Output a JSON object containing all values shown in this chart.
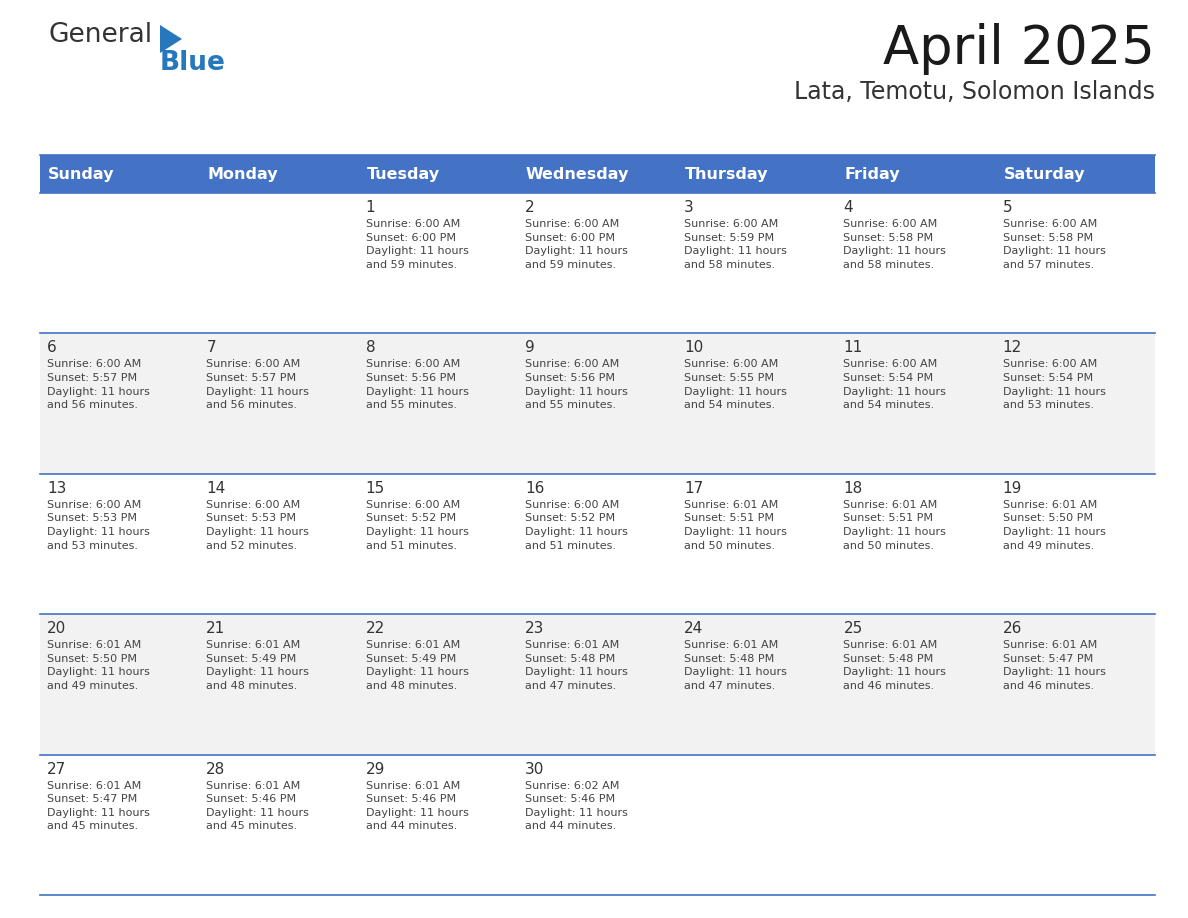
{
  "title": "April 2025",
  "subtitle": "Lata, Temotu, Solomon Islands",
  "header_bg": "#4472C4",
  "header_text_color": "#FFFFFF",
  "days_of_week": [
    "Sunday",
    "Monday",
    "Tuesday",
    "Wednesday",
    "Thursday",
    "Friday",
    "Saturday"
  ],
  "row_bg_even": "#FFFFFF",
  "row_bg_odd": "#F2F2F2",
  "cell_border_color": "#4472C4",
  "day_number_color": "#333333",
  "cell_text_color": "#444444",
  "calendar": [
    [
      {
        "day": "",
        "sunrise": "",
        "sunset": "",
        "daylight": ""
      },
      {
        "day": "",
        "sunrise": "",
        "sunset": "",
        "daylight": ""
      },
      {
        "day": "1",
        "sunrise": "Sunrise: 6:00 AM",
        "sunset": "Sunset: 6:00 PM",
        "daylight": "Daylight: 11 hours\nand 59 minutes."
      },
      {
        "day": "2",
        "sunrise": "Sunrise: 6:00 AM",
        "sunset": "Sunset: 6:00 PM",
        "daylight": "Daylight: 11 hours\nand 59 minutes."
      },
      {
        "day": "3",
        "sunrise": "Sunrise: 6:00 AM",
        "sunset": "Sunset: 5:59 PM",
        "daylight": "Daylight: 11 hours\nand 58 minutes."
      },
      {
        "day": "4",
        "sunrise": "Sunrise: 6:00 AM",
        "sunset": "Sunset: 5:58 PM",
        "daylight": "Daylight: 11 hours\nand 58 minutes."
      },
      {
        "day": "5",
        "sunrise": "Sunrise: 6:00 AM",
        "sunset": "Sunset: 5:58 PM",
        "daylight": "Daylight: 11 hours\nand 57 minutes."
      }
    ],
    [
      {
        "day": "6",
        "sunrise": "Sunrise: 6:00 AM",
        "sunset": "Sunset: 5:57 PM",
        "daylight": "Daylight: 11 hours\nand 56 minutes."
      },
      {
        "day": "7",
        "sunrise": "Sunrise: 6:00 AM",
        "sunset": "Sunset: 5:57 PM",
        "daylight": "Daylight: 11 hours\nand 56 minutes."
      },
      {
        "day": "8",
        "sunrise": "Sunrise: 6:00 AM",
        "sunset": "Sunset: 5:56 PM",
        "daylight": "Daylight: 11 hours\nand 55 minutes."
      },
      {
        "day": "9",
        "sunrise": "Sunrise: 6:00 AM",
        "sunset": "Sunset: 5:56 PM",
        "daylight": "Daylight: 11 hours\nand 55 minutes."
      },
      {
        "day": "10",
        "sunrise": "Sunrise: 6:00 AM",
        "sunset": "Sunset: 5:55 PM",
        "daylight": "Daylight: 11 hours\nand 54 minutes."
      },
      {
        "day": "11",
        "sunrise": "Sunrise: 6:00 AM",
        "sunset": "Sunset: 5:54 PM",
        "daylight": "Daylight: 11 hours\nand 54 minutes."
      },
      {
        "day": "12",
        "sunrise": "Sunrise: 6:00 AM",
        "sunset": "Sunset: 5:54 PM",
        "daylight": "Daylight: 11 hours\nand 53 minutes."
      }
    ],
    [
      {
        "day": "13",
        "sunrise": "Sunrise: 6:00 AM",
        "sunset": "Sunset: 5:53 PM",
        "daylight": "Daylight: 11 hours\nand 53 minutes."
      },
      {
        "day": "14",
        "sunrise": "Sunrise: 6:00 AM",
        "sunset": "Sunset: 5:53 PM",
        "daylight": "Daylight: 11 hours\nand 52 minutes."
      },
      {
        "day": "15",
        "sunrise": "Sunrise: 6:00 AM",
        "sunset": "Sunset: 5:52 PM",
        "daylight": "Daylight: 11 hours\nand 51 minutes."
      },
      {
        "day": "16",
        "sunrise": "Sunrise: 6:00 AM",
        "sunset": "Sunset: 5:52 PM",
        "daylight": "Daylight: 11 hours\nand 51 minutes."
      },
      {
        "day": "17",
        "sunrise": "Sunrise: 6:01 AM",
        "sunset": "Sunset: 5:51 PM",
        "daylight": "Daylight: 11 hours\nand 50 minutes."
      },
      {
        "day": "18",
        "sunrise": "Sunrise: 6:01 AM",
        "sunset": "Sunset: 5:51 PM",
        "daylight": "Daylight: 11 hours\nand 50 minutes."
      },
      {
        "day": "19",
        "sunrise": "Sunrise: 6:01 AM",
        "sunset": "Sunset: 5:50 PM",
        "daylight": "Daylight: 11 hours\nand 49 minutes."
      }
    ],
    [
      {
        "day": "20",
        "sunrise": "Sunrise: 6:01 AM",
        "sunset": "Sunset: 5:50 PM",
        "daylight": "Daylight: 11 hours\nand 49 minutes."
      },
      {
        "day": "21",
        "sunrise": "Sunrise: 6:01 AM",
        "sunset": "Sunset: 5:49 PM",
        "daylight": "Daylight: 11 hours\nand 48 minutes."
      },
      {
        "day": "22",
        "sunrise": "Sunrise: 6:01 AM",
        "sunset": "Sunset: 5:49 PM",
        "daylight": "Daylight: 11 hours\nand 48 minutes."
      },
      {
        "day": "23",
        "sunrise": "Sunrise: 6:01 AM",
        "sunset": "Sunset: 5:48 PM",
        "daylight": "Daylight: 11 hours\nand 47 minutes."
      },
      {
        "day": "24",
        "sunrise": "Sunrise: 6:01 AM",
        "sunset": "Sunset: 5:48 PM",
        "daylight": "Daylight: 11 hours\nand 47 minutes."
      },
      {
        "day": "25",
        "sunrise": "Sunrise: 6:01 AM",
        "sunset": "Sunset: 5:48 PM",
        "daylight": "Daylight: 11 hours\nand 46 minutes."
      },
      {
        "day": "26",
        "sunrise": "Sunrise: 6:01 AM",
        "sunset": "Sunset: 5:47 PM",
        "daylight": "Daylight: 11 hours\nand 46 minutes."
      }
    ],
    [
      {
        "day": "27",
        "sunrise": "Sunrise: 6:01 AM",
        "sunset": "Sunset: 5:47 PM",
        "daylight": "Daylight: 11 hours\nand 45 minutes."
      },
      {
        "day": "28",
        "sunrise": "Sunrise: 6:01 AM",
        "sunset": "Sunset: 5:46 PM",
        "daylight": "Daylight: 11 hours\nand 45 minutes."
      },
      {
        "day": "29",
        "sunrise": "Sunrise: 6:01 AM",
        "sunset": "Sunset: 5:46 PM",
        "daylight": "Daylight: 11 hours\nand 44 minutes."
      },
      {
        "day": "30",
        "sunrise": "Sunrise: 6:02 AM",
        "sunset": "Sunset: 5:46 PM",
        "daylight": "Daylight: 11 hours\nand 44 minutes."
      },
      {
        "day": "",
        "sunrise": "",
        "sunset": "",
        "daylight": ""
      },
      {
        "day": "",
        "sunrise": "",
        "sunset": "",
        "daylight": ""
      },
      {
        "day": "",
        "sunrise": "",
        "sunset": "",
        "daylight": ""
      }
    ]
  ],
  "logo_color_general": "#333333",
  "logo_color_blue": "#2777BC",
  "logo_triangle_color": "#2777BC"
}
